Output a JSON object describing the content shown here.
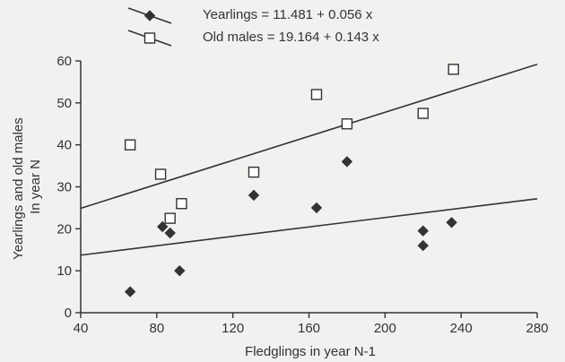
{
  "chart_data": {
    "type": "scatter",
    "title": "",
    "xlabel": "Fledglings in year N-1",
    "ylabel": [
      "Yearlings and old males",
      "In year N"
    ],
    "xlim": [
      40,
      280
    ],
    "ylim": [
      0,
      60
    ],
    "x_ticks": [
      40,
      80,
      120,
      160,
      200,
      240,
      280
    ],
    "y_ticks": [
      0,
      10,
      20,
      30,
      40,
      50,
      60
    ],
    "x_tick_labels": [
      "40",
      "80",
      "120",
      "160",
      "200",
      "240",
      "280"
    ],
    "y_tick_labels": [
      "0",
      "10",
      "20",
      "30",
      "40",
      "50",
      "60"
    ],
    "grid": false,
    "legend_position": "top",
    "series": [
      {
        "name": "Yearlings = 11.481 + 0.056 x",
        "marker": "diamond",
        "marker_fill": "#333333",
        "fit": {
          "intercept": 11.481,
          "slope": 0.056
        },
        "points": [
          {
            "x": 66,
            "y": 5
          },
          {
            "x": 83,
            "y": 20.5
          },
          {
            "x": 87,
            "y": 19
          },
          {
            "x": 92,
            "y": 10
          },
          {
            "x": 131,
            "y": 28
          },
          {
            "x": 164,
            "y": 25
          },
          {
            "x": 180,
            "y": 36
          },
          {
            "x": 220,
            "y": 19.5
          },
          {
            "x": 220,
            "y": 16
          },
          {
            "x": 235,
            "y": 21.5
          }
        ]
      },
      {
        "name": "Old males = 19.164 + 0.143 x",
        "marker": "square",
        "marker_fill": "#ffffff",
        "fit": {
          "intercept": 19.164,
          "slope": 0.143
        },
        "points": [
          {
            "x": 66,
            "y": 40
          },
          {
            "x": 82,
            "y": 33
          },
          {
            "x": 87,
            "y": 22.5
          },
          {
            "x": 93,
            "y": 26
          },
          {
            "x": 131,
            "y": 33.5
          },
          {
            "x": 164,
            "y": 52
          },
          {
            "x": 180,
            "y": 45
          },
          {
            "x": 220,
            "y": 47.5
          },
          {
            "x": 236,
            "y": 58
          }
        ]
      }
    ]
  }
}
